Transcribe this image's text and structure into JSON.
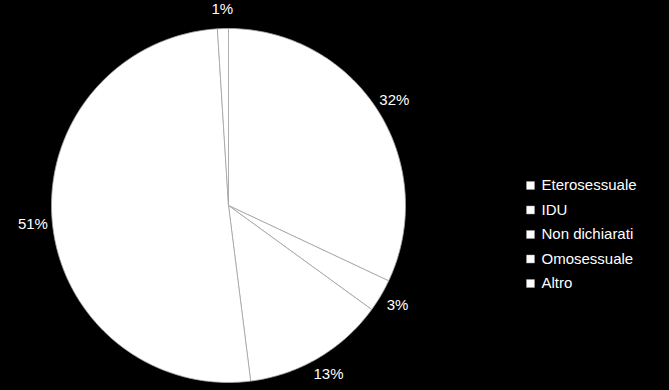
{
  "chart_data": {
    "type": "pie",
    "categories": [
      "Eterosessuale",
      "IDU",
      "Non dichiarati",
      "Omosessuale",
      "Altro"
    ],
    "values": [
      32,
      3,
      13,
      51,
      1
    ],
    "value_labels": [
      "32%",
      "3%",
      "13%",
      "51%",
      "1%"
    ],
    "colors": [
      "#ffffff",
      "#ffffff",
      "#ffffff",
      "#ffffff",
      "#ffffff"
    ],
    "data_labels": true,
    "legend": "right"
  }
}
